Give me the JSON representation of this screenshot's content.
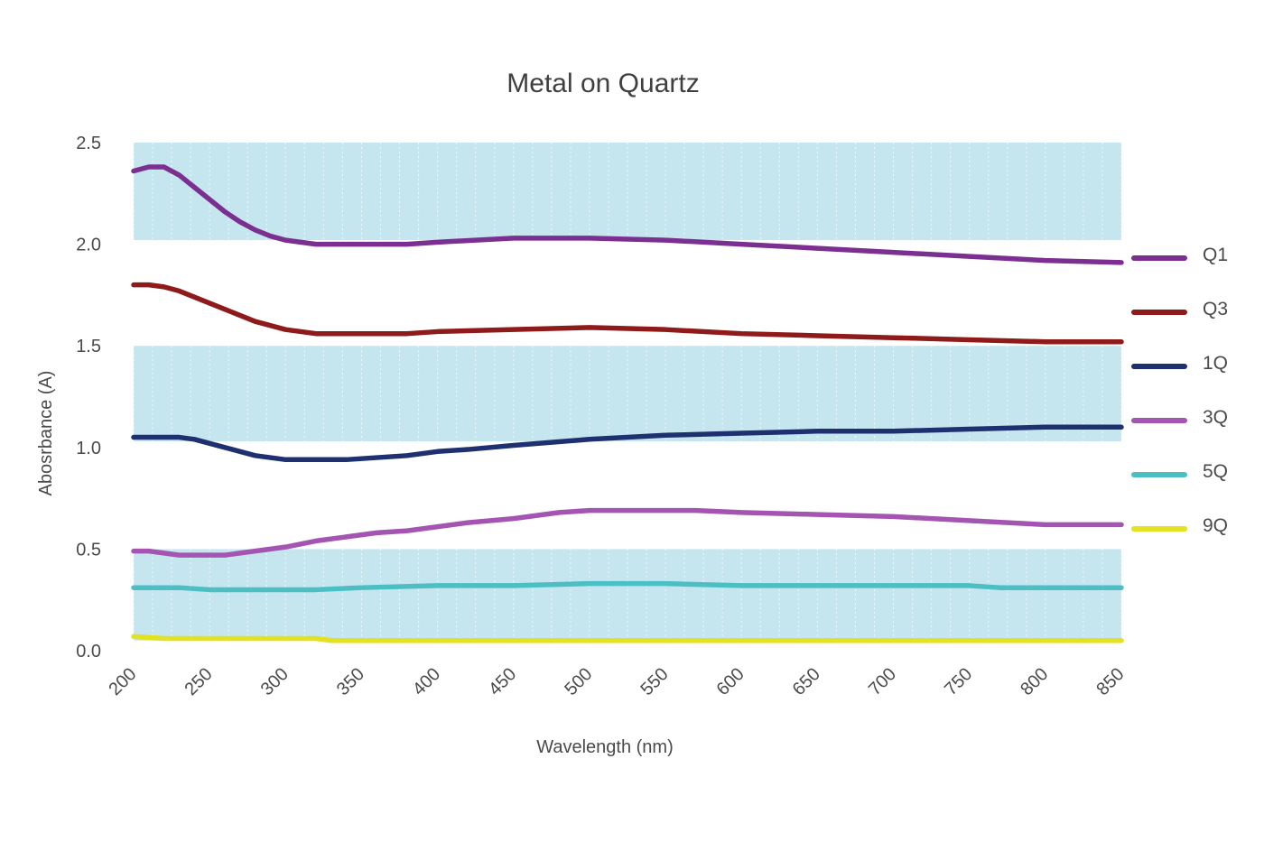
{
  "chart_data": {
    "type": "line",
    "title": "Metal on Quartz",
    "xlabel": "Wavelength (nm)",
    "ylabel": "Abosrbance (A)",
    "xlim": [
      200,
      850
    ],
    "ylim": [
      0,
      2.5
    ],
    "x_ticks": [
      "200",
      "250",
      "300",
      "350",
      "400",
      "450",
      "500",
      "550",
      "600",
      "650",
      "700",
      "750",
      "800",
      "850"
    ],
    "y_ticks": [
      "0.0",
      "0.5",
      "1.0",
      "1.5",
      "2.0",
      "2.5"
    ],
    "bands": [
      [
        0.05,
        0.5
      ],
      [
        1.03,
        1.5
      ],
      [
        2.02,
        2.5
      ]
    ],
    "legend_position": "right",
    "series": [
      {
        "name": "Q1",
        "color": "#7b2f91",
        "x": [
          200,
          205,
          210,
          220,
          230,
          240,
          250,
          260,
          270,
          280,
          290,
          300,
          310,
          320,
          330,
          350,
          380,
          400,
          450,
          500,
          550,
          600,
          650,
          700,
          750,
          800,
          850
        ],
        "y": [
          2.36,
          2.37,
          2.38,
          2.38,
          2.34,
          2.28,
          2.22,
          2.16,
          2.11,
          2.07,
          2.04,
          2.02,
          2.01,
          2.0,
          2.0,
          2.0,
          2.0,
          2.01,
          2.03,
          2.03,
          2.02,
          2.0,
          1.98,
          1.96,
          1.94,
          1.92,
          1.91
        ]
      },
      {
        "name": "Q3",
        "color": "#8e1a1a",
        "x": [
          200,
          210,
          220,
          230,
          240,
          250,
          260,
          270,
          280,
          290,
          300,
          310,
          320,
          330,
          350,
          380,
          400,
          450,
          500,
          550,
          600,
          650,
          700,
          750,
          800,
          850
        ],
        "y": [
          1.8,
          1.8,
          1.79,
          1.77,
          1.74,
          1.71,
          1.68,
          1.65,
          1.62,
          1.6,
          1.58,
          1.57,
          1.56,
          1.56,
          1.56,
          1.56,
          1.57,
          1.58,
          1.59,
          1.58,
          1.56,
          1.55,
          1.54,
          1.53,
          1.52,
          1.52
        ]
      },
      {
        "name": "1Q",
        "color": "#1f3070",
        "x": [
          200,
          210,
          220,
          230,
          240,
          250,
          260,
          270,
          280,
          290,
          300,
          310,
          320,
          340,
          360,
          380,
          400,
          420,
          450,
          500,
          550,
          600,
          650,
          700,
          750,
          800,
          850
        ],
        "y": [
          1.05,
          1.05,
          1.05,
          1.05,
          1.04,
          1.02,
          1.0,
          0.98,
          0.96,
          0.95,
          0.94,
          0.94,
          0.94,
          0.94,
          0.95,
          0.96,
          0.98,
          0.99,
          1.01,
          1.04,
          1.06,
          1.07,
          1.08,
          1.08,
          1.09,
          1.1,
          1.1
        ]
      },
      {
        "name": "3Q",
        "color": "#a455b2",
        "x": [
          200,
          210,
          220,
          230,
          240,
          250,
          260,
          270,
          280,
          290,
          300,
          320,
          340,
          360,
          380,
          400,
          420,
          450,
          480,
          500,
          550,
          570,
          600,
          650,
          700,
          750,
          800,
          850
        ],
        "y": [
          0.49,
          0.49,
          0.48,
          0.47,
          0.47,
          0.47,
          0.47,
          0.48,
          0.49,
          0.5,
          0.51,
          0.54,
          0.56,
          0.58,
          0.59,
          0.61,
          0.63,
          0.65,
          0.68,
          0.69,
          0.69,
          0.69,
          0.68,
          0.67,
          0.66,
          0.64,
          0.62,
          0.62
        ]
      },
      {
        "name": "5Q",
        "color": "#4cbfc4",
        "x": [
          200,
          230,
          250,
          300,
          320,
          350,
          400,
          450,
          500,
          550,
          600,
          650,
          700,
          750,
          770,
          800,
          850
        ],
        "y": [
          0.31,
          0.31,
          0.3,
          0.3,
          0.3,
          0.31,
          0.32,
          0.32,
          0.33,
          0.33,
          0.32,
          0.32,
          0.32,
          0.32,
          0.31,
          0.31,
          0.31
        ]
      },
      {
        "name": "9Q",
        "color": "#e2e21e",
        "x": [
          200,
          220,
          250,
          300,
          320,
          330,
          400,
          500,
          600,
          700,
          800,
          850
        ],
        "y": [
          0.07,
          0.06,
          0.06,
          0.06,
          0.06,
          0.05,
          0.05,
          0.05,
          0.05,
          0.05,
          0.05,
          0.05
        ]
      }
    ]
  }
}
